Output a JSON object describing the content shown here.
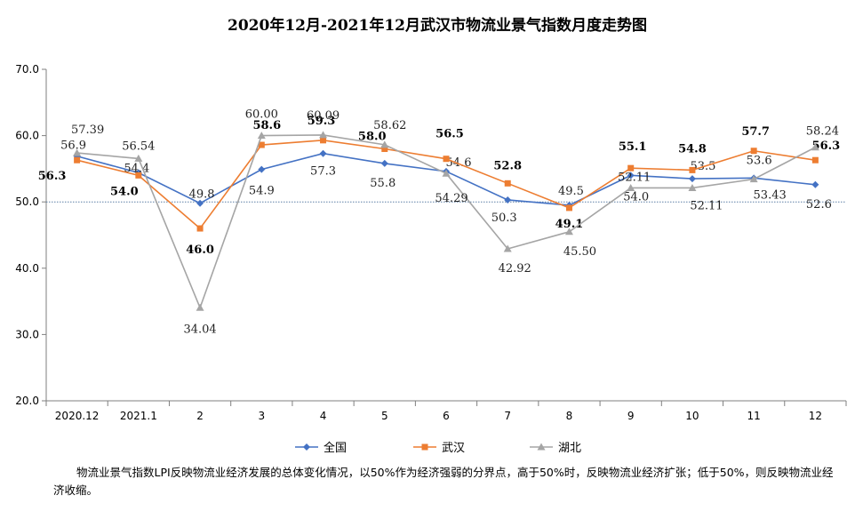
{
  "chart_data": {
    "type": "line",
    "title": "2020年12月-2021年12月武汉市物流业景气指数月度走势图",
    "categories": [
      "2020.12",
      "2021.1",
      "2",
      "3",
      "4",
      "5",
      "6",
      "7",
      "8",
      "9",
      "10",
      "11",
      "12"
    ],
    "ylim": [
      20.0,
      70.0
    ],
    "yticks": [
      "20.0",
      "30.0",
      "40.0",
      "50.0",
      "60.0",
      "70.0"
    ],
    "reference_line": 50.0,
    "legend_position": "bottom",
    "series": [
      {
        "name": "全国",
        "color": "#4472C4",
        "marker": "diamond",
        "values": [
          56.9,
          54.4,
          49.8,
          54.9,
          57.3,
          55.8,
          54.6,
          50.3,
          49.5,
          54.0,
          53.5,
          53.6,
          52.6
        ],
        "labels": [
          "56.9",
          "54.4",
          "49.8",
          "54.9",
          "57.3",
          "55.8",
          "54.6",
          "50.3",
          "49.5",
          "54.0",
          "53.5",
          "53.6",
          "52.6"
        ]
      },
      {
        "name": "武汉",
        "color": "#ED7D31",
        "marker": "square",
        "values": [
          56.3,
          54.0,
          46.0,
          58.6,
          59.3,
          58.0,
          56.5,
          52.8,
          49.1,
          55.1,
          54.8,
          57.7,
          56.3
        ],
        "labels": [
          "56.3",
          "54.0",
          "46.0",
          "58.6",
          "59.3",
          "58.0",
          "56.5",
          "52.8",
          "49.1",
          "55.1",
          "54.8",
          "57.7",
          "56.3"
        ]
      },
      {
        "name": "湖北",
        "color": "#A5A5A5",
        "marker": "triangle",
        "values": [
          57.39,
          56.54,
          34.04,
          60.0,
          60.09,
          58.62,
          54.29,
          42.92,
          45.5,
          52.11,
          52.11,
          53.43,
          58.24
        ],
        "labels": [
          "57.39",
          "56.54",
          "34.04",
          "60.00",
          "60.09",
          "58.62",
          "54.29",
          "42.92",
          "45.50",
          "52.11",
          "52.11",
          "53.43",
          "58.24"
        ]
      }
    ]
  },
  "note": "物流业景气指数LPI反映物流业经济发展的总体变化情况，以50%作为经济强弱的分界点，高于50%时，反映物流业经济扩张；低于50%，则反映物流业经济收缩。"
}
